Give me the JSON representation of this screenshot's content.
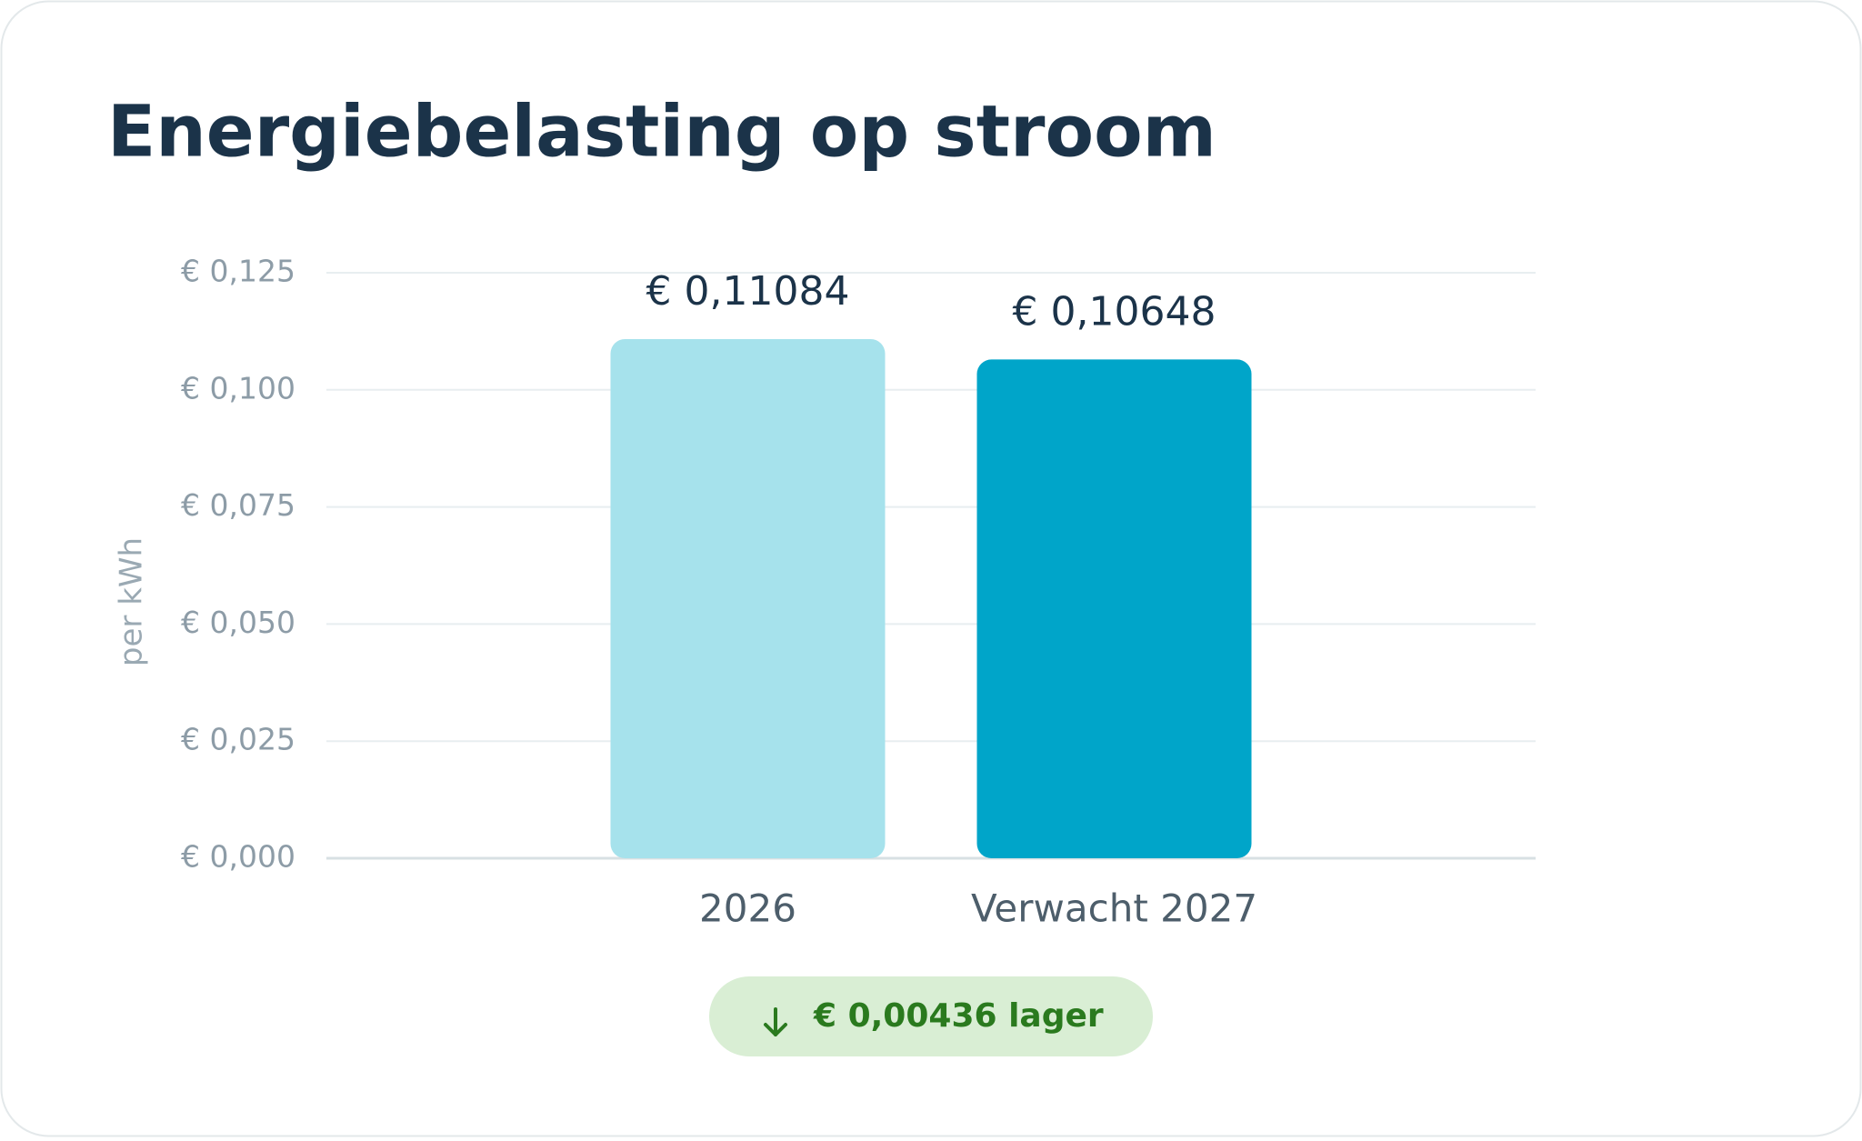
{
  "chart_data": {
    "type": "bar",
    "title": "Energiebelasting op stroom",
    "ylabel": "per kWh",
    "categories": [
      "2026",
      "Verwacht 2027"
    ],
    "values": [
      0.11084,
      0.10648
    ],
    "value_labels": [
      "€ 0,11084",
      "€ 0,10648"
    ],
    "colors": [
      "#a6e2ec",
      "#00a5c9"
    ],
    "ylim": [
      0,
      0.125
    ],
    "yticks": [
      {
        "value": 0,
        "label": "€ 0,000"
      },
      {
        "value": 0.025,
        "label": "€ 0,025"
      },
      {
        "value": 0.05,
        "label": "€ 0,050"
      },
      {
        "value": 0.075,
        "label": "€ 0,075"
      },
      {
        "value": 0.1,
        "label": "€ 0,100"
      },
      {
        "value": 0.125,
        "label": "€ 0,125"
      }
    ],
    "grid": true,
    "annotation": "€ 0,00436 lager"
  }
}
